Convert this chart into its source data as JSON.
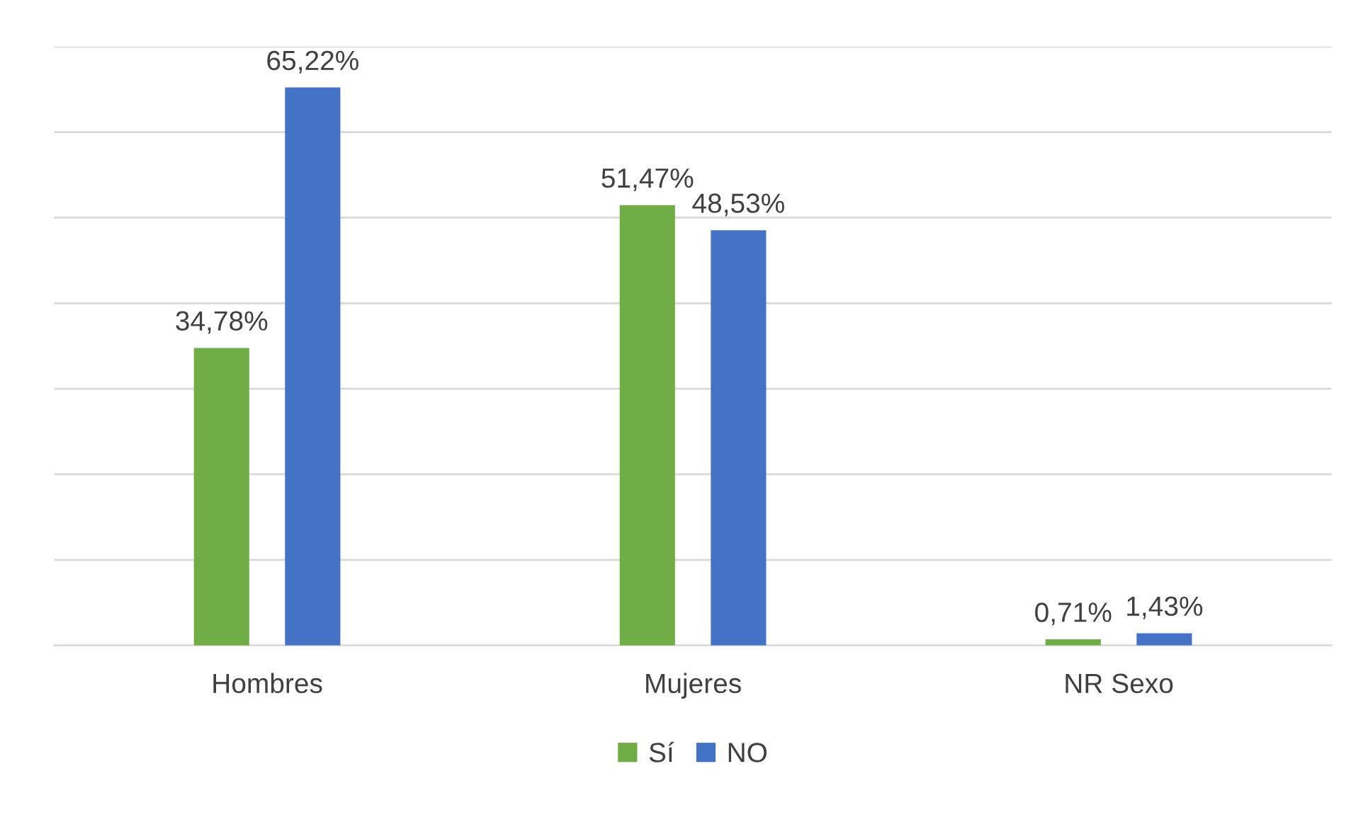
{
  "chart_data": {
    "type": "bar",
    "categories": [
      "Hombres",
      "Mujeres",
      "NR Sexo"
    ],
    "series": [
      {
        "name": "Sí",
        "color": "#70ad47",
        "values": [
          34.78,
          51.47,
          0.71
        ],
        "value_labels": [
          "34,78%",
          "51,47%",
          "0,71%"
        ]
      },
      {
        "name": "NO",
        "color": "#4472c4",
        "values": [
          65.22,
          48.53,
          1.43
        ],
        "value_labels": [
          "65,22%",
          "48,53%",
          "1,43%"
        ]
      }
    ],
    "ylim": [
      0,
      70
    ],
    "yticks": [
      {
        "value": 0,
        "label": null
      },
      {
        "value": 10,
        "label": null
      },
      {
        "value": 20,
        "label": null
      },
      {
        "value": 30,
        "label": null
      },
      {
        "value": 40,
        "label": null
      },
      {
        "value": 50,
        "label": null
      },
      {
        "value": 60,
        "label": null
      },
      {
        "value": 70,
        "label": null
      }
    ],
    "tick_labels": "x",
    "grid": "y",
    "legend": "bottom"
  }
}
